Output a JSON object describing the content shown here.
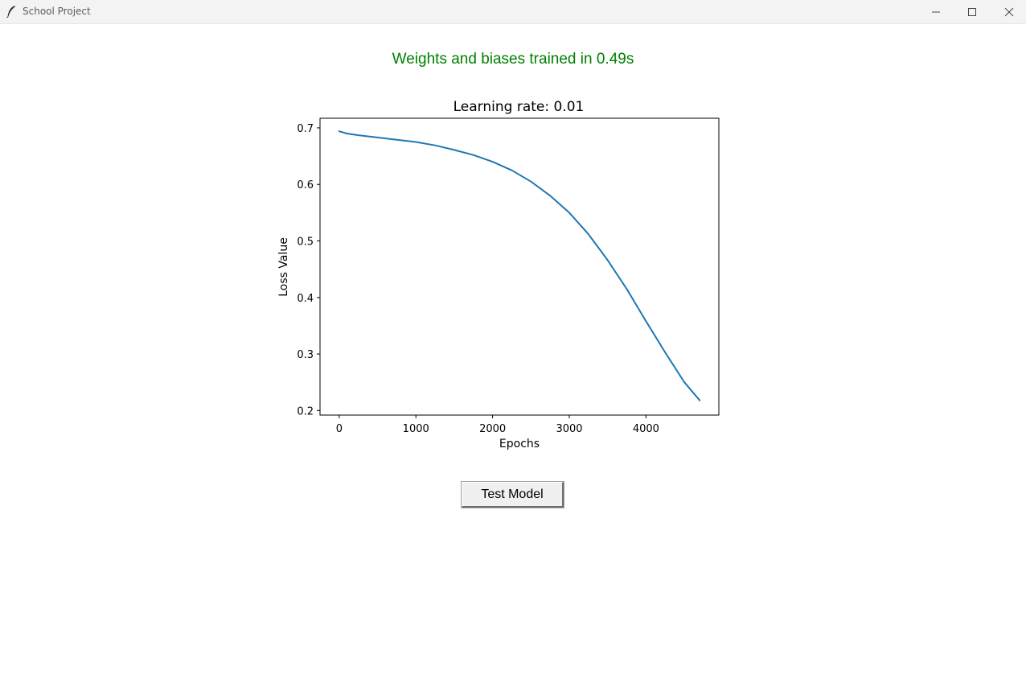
{
  "window": {
    "title": "School Project",
    "icon": "feather-icon",
    "controls": [
      "minimize-icon",
      "maximize-icon",
      "close-icon"
    ]
  },
  "status": {
    "text": "Weights and biases trained in 0.49s",
    "color": "#008000"
  },
  "chart_data": {
    "type": "line",
    "title": "Learning rate: 0.01",
    "xlabel": "Epochs",
    "ylabel": "Loss Value",
    "xlim": [
      -250,
      4950
    ],
    "ylim": [
      0.192,
      0.717
    ],
    "xticks": [
      0,
      1000,
      2000,
      3000,
      4000
    ],
    "yticks": [
      0.2,
      0.3,
      0.4,
      0.5,
      0.6,
      0.7
    ],
    "grid": false,
    "series": [
      {
        "color": "#1f77b4",
        "x": [
          0,
          100,
          250,
          500,
          750,
          1000,
          1250,
          1500,
          1750,
          2000,
          2250,
          2500,
          2750,
          3000,
          3250,
          3500,
          3750,
          4000,
          4250,
          4500,
          4700
        ],
        "y": [
          0.694,
          0.69,
          0.687,
          0.683,
          0.679,
          0.675,
          0.669,
          0.661,
          0.652,
          0.64,
          0.625,
          0.605,
          0.58,
          0.55,
          0.512,
          0.466,
          0.415,
          0.358,
          0.303,
          0.25,
          0.218
        ]
      }
    ]
  },
  "actions": {
    "test_model_label": "Test Model"
  }
}
